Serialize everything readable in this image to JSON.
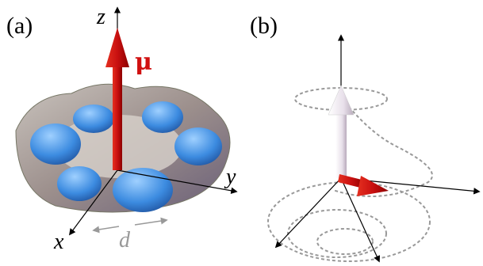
{
  "panels": [
    {
      "label": "(a)",
      "axes": {
        "z": "z",
        "y": "y",
        "x": "x"
      },
      "moment_label": "μ",
      "distance_label": "d"
    },
    {
      "label": "(b)"
    }
  ]
}
